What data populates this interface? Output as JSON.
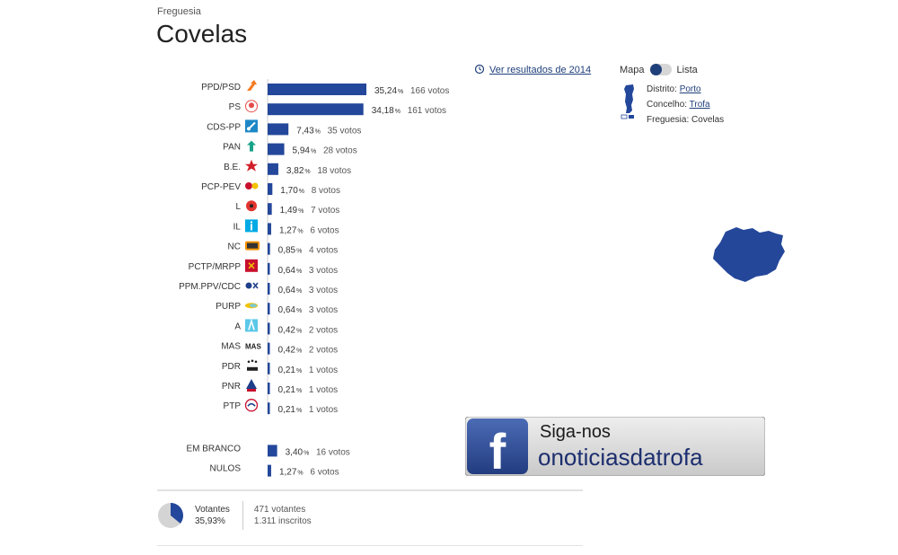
{
  "header": {
    "kicker": "Freguesia",
    "title": "Covelas"
  },
  "history_link": "Ver resultados de 2014",
  "view_switch": {
    "left": "Mapa",
    "right": "Lista"
  },
  "location": {
    "distrito_label": "Distrito:",
    "distrito": "Porto",
    "concelho_label": "Concelho:",
    "concelho": "Trofa",
    "freguesia_label": "Freguesia:",
    "freguesia": "Covelas"
  },
  "colors": {
    "bar": "#23479a",
    "map": "#24479a",
    "fb_blue": "#2f4b93"
  },
  "chart_data": {
    "type": "bar",
    "orientation": "horizontal",
    "categories": [
      "PPD/PSD",
      "PS",
      "CDS-PP",
      "PAN",
      "B.E.",
      "PCP-PEV",
      "L",
      "IL",
      "NC",
      "PCTP/MRPP",
      "PPM.PPV/CDC",
      "PURP",
      "A",
      "MAS",
      "PDR",
      "PNR",
      "PTP"
    ],
    "percent_labels": [
      "35,24",
      "34,18",
      "7,43",
      "5,94",
      "3,82",
      "1,70",
      "1,49",
      "1,27",
      "0,85",
      "0,64",
      "0,64",
      "0,64",
      "0,42",
      "0,42",
      "0,21",
      "0,21",
      "0,21"
    ],
    "values": [
      35.24,
      34.18,
      7.43,
      5.94,
      3.82,
      1.7,
      1.49,
      1.27,
      0.85,
      0.64,
      0.64,
      0.64,
      0.42,
      0.42,
      0.21,
      0.21,
      0.21
    ],
    "votes": [
      "166 votos",
      "161 votos",
      "35 votos",
      "28 votos",
      "18 votos",
      "8 votos",
      "7 votos",
      "6 votos",
      "4 votos",
      "3 votos",
      "3 votos",
      "3 votos",
      "2 votos",
      "2 votos",
      "1 votos",
      "1 votos",
      "1 votos"
    ],
    "percent_unit": "%",
    "party_icons": [
      "psd-arrow-icon",
      "ps-rose-icon",
      "cds-icon",
      "pan-icon",
      "be-star-icon",
      "pcp-pev-icon",
      "livre-poppy-icon",
      "il-icon",
      "nc-icon",
      "pctp-icon",
      "ppm-icon",
      "purp-icon",
      "alianca-icon",
      "mas-icon",
      "pdr-icon",
      "pnr-icon",
      "ptp-icon"
    ],
    "extra_categories": [
      "EM BRANCO",
      "NULOS"
    ],
    "extra_percent_labels": [
      "3,40",
      "1,27"
    ],
    "extra_values": [
      3.4,
      1.27
    ],
    "extra_votes": [
      "16 votos",
      "6 votos"
    ]
  },
  "turnout": {
    "label": "Votantes",
    "percent": "35,93%",
    "value": 35.93,
    "votantes": "471 votantes",
    "inscritos": "1.311 inscritos"
  },
  "banner": {
    "line1": "Siga-nos",
    "line2": "onoticiasdatrofa",
    "logo": "f"
  }
}
